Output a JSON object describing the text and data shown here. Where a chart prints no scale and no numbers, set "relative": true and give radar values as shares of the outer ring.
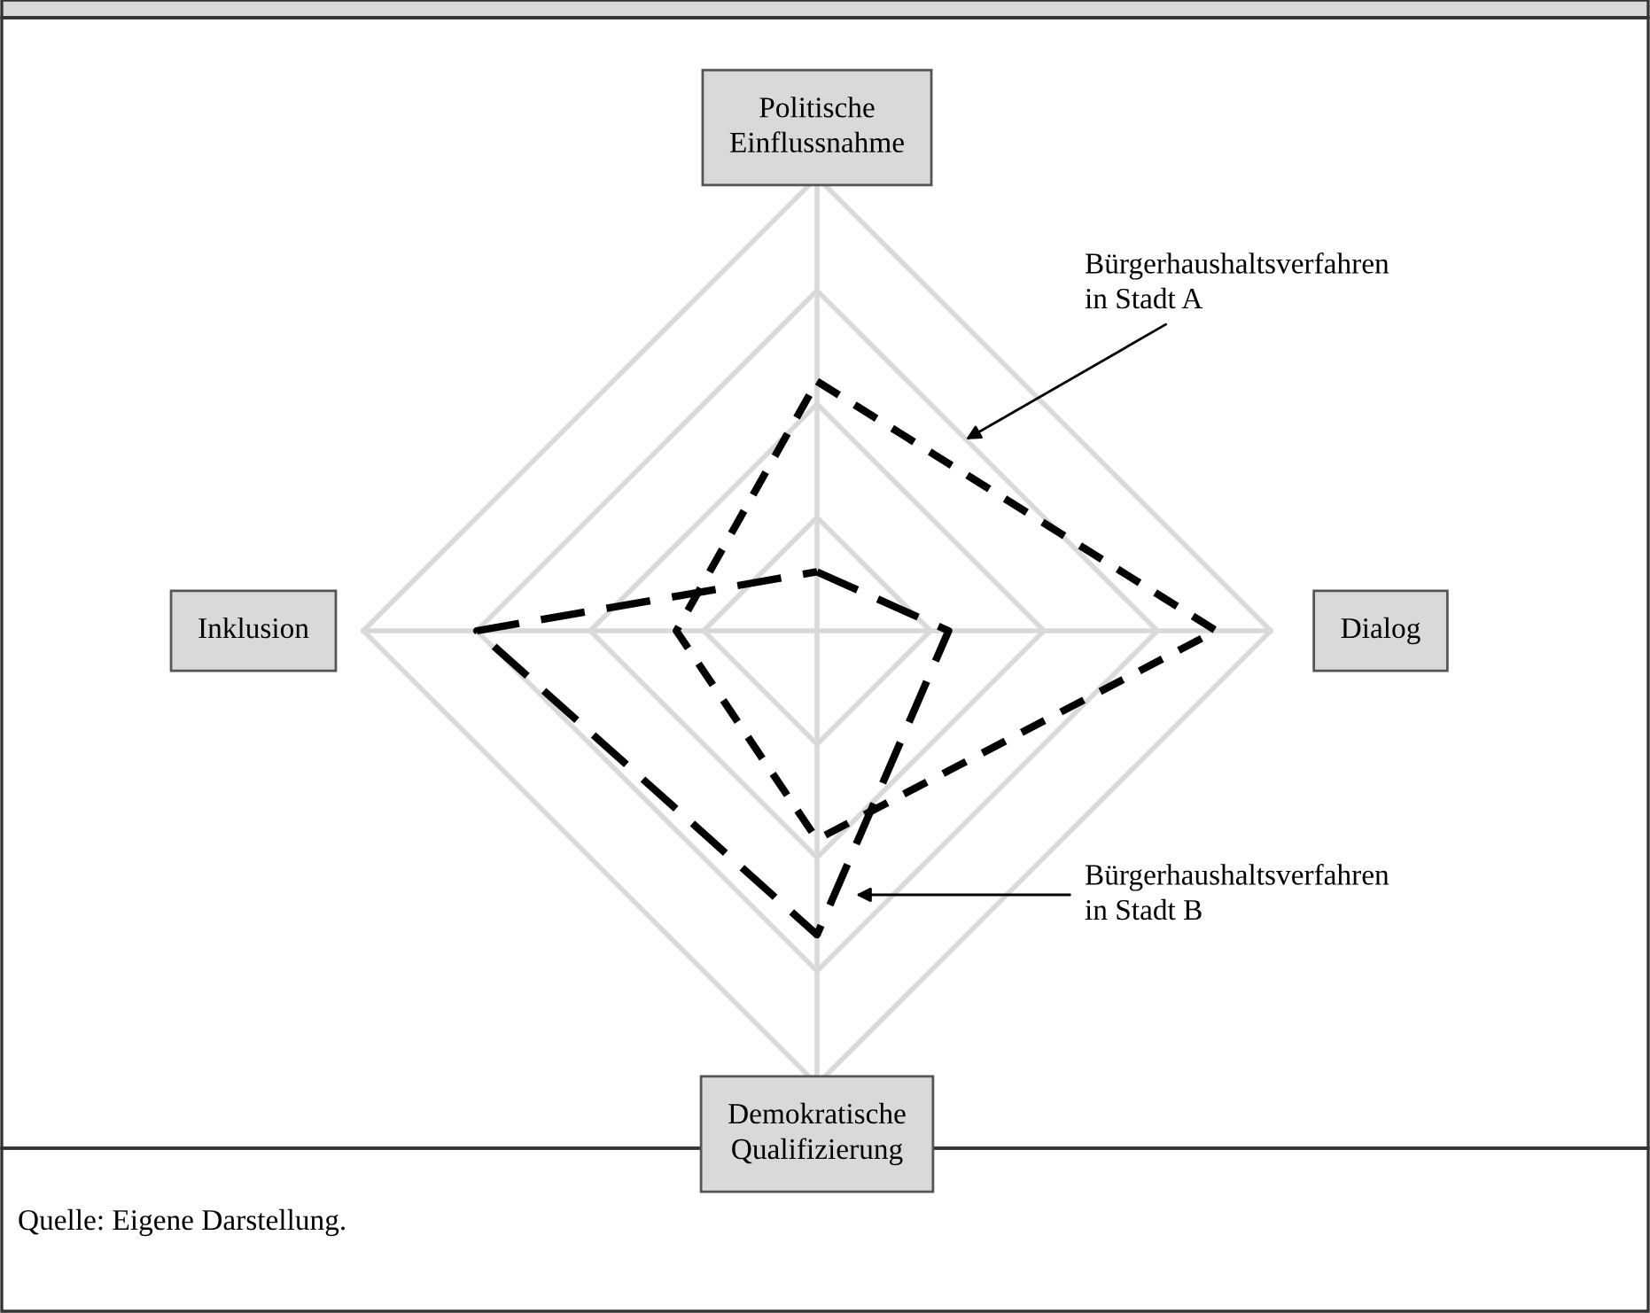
{
  "chart_data": {
    "type": "radar",
    "relative": true,
    "grid": true,
    "legend": false,
    "marker": "none",
    "categories": [
      "Politische Einflussnahme",
      "Dialog",
      "Demokratische Qualifizierung",
      "Inklusion"
    ],
    "series": [
      {
        "name": "Bürgerhaushaltsverfahren in Stadt A",
        "color": "#000000",
        "line_style": "dashed",
        "values": [
          0.55,
          0.88,
          0.46,
          0.31
        ]
      },
      {
        "name": "Bürgerhaushaltsverfahren in Stadt B",
        "color": "#000000",
        "line_style": "dashed",
        "values": [
          0.13,
          0.29,
          0.67,
          0.75
        ]
      }
    ],
    "annotations": [
      "Quelle: Eigene Darstellung."
    ]
  }
}
